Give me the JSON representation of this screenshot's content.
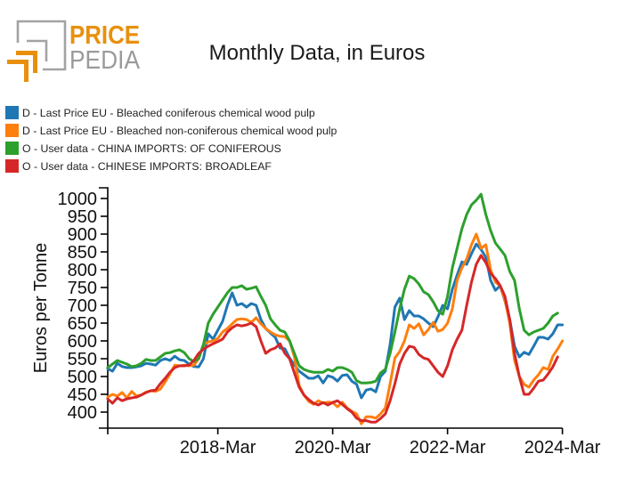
{
  "logo": {
    "line1": "PRICE",
    "line2": "PEDIA",
    "accent_color": "#e8900c",
    "gray_color": "#a3a3a3"
  },
  "chart_data": {
    "type": "line",
    "title": "Monthly Data, in Euros",
    "xlabel": "",
    "ylabel": "Euros per Tonne",
    "legend_position": "top-left",
    "grid": false,
    "ylim": [
      355,
      1030
    ],
    "xlim": [
      "2016-Apr",
      "2024-Mar"
    ],
    "yticks": [
      400,
      450,
      500,
      550,
      600,
      650,
      700,
      750,
      800,
      850,
      900,
      950,
      1000
    ],
    "xticks": [
      "2018-Mar",
      "2020-Mar",
      "2022-Mar",
      "2024-Mar"
    ],
    "x": [
      "2016-Apr",
      "2016-May",
      "2016-Jun",
      "2016-Jul",
      "2016-Aug",
      "2016-Sep",
      "2016-Oct",
      "2016-Nov",
      "2016-Dec",
      "2017-Jan",
      "2017-Feb",
      "2017-Mar",
      "2017-Apr",
      "2017-May",
      "2017-Jun",
      "2017-Jul",
      "2017-Aug",
      "2017-Sep",
      "2017-Oct",
      "2017-Nov",
      "2017-Dec",
      "2018-Jan",
      "2018-Feb",
      "2018-Mar",
      "2018-Apr",
      "2018-May",
      "2018-Jun",
      "2018-Jul",
      "2018-Aug",
      "2018-Sep",
      "2018-Oct",
      "2018-Nov",
      "2018-Dec",
      "2019-Jan",
      "2019-Feb",
      "2019-Mar",
      "2019-Apr",
      "2019-May",
      "2019-Jun",
      "2019-Jul",
      "2019-Aug",
      "2019-Sep",
      "2019-Oct",
      "2019-Nov",
      "2019-Dec",
      "2020-Jan",
      "2020-Feb",
      "2020-Mar",
      "2020-Apr",
      "2020-May",
      "2020-Jun",
      "2020-Jul",
      "2020-Aug",
      "2020-Sep",
      "2020-Oct",
      "2020-Nov",
      "2020-Dec",
      "2021-Jan",
      "2021-Feb",
      "2021-Mar",
      "2021-Apr",
      "2021-May",
      "2021-Jun",
      "2021-Jul",
      "2021-Aug",
      "2021-Sep",
      "2021-Oct",
      "2021-Nov",
      "2021-Dec",
      "2022-Jan",
      "2022-Feb",
      "2022-Mar",
      "2022-Apr",
      "2022-May",
      "2022-Jun",
      "2022-Jul",
      "2022-Aug",
      "2022-Sep",
      "2022-Oct",
      "2022-Nov",
      "2022-Dec",
      "2023-Jan",
      "2023-Feb",
      "2023-Mar",
      "2023-Apr",
      "2023-May",
      "2023-Jun",
      "2023-Jul",
      "2023-Aug",
      "2023-Sep",
      "2023-Oct",
      "2023-Nov",
      "2023-Dec",
      "2024-Jan",
      "2024-Feb",
      "2024-Mar"
    ],
    "series": [
      {
        "name": "D - Last Price EU - Bleached coniferous chemical wood pulp",
        "color": "#1f77b4",
        "values": [
          522,
          515,
          537,
          528,
          525,
          525,
          527,
          530,
          537,
          535,
          532,
          545,
          550,
          545,
          557,
          547,
          545,
          535,
          528,
          527,
          550,
          620,
          605,
          630,
          655,
          700,
          735,
          700,
          705,
          695,
          705,
          700,
          660,
          635,
          622,
          610,
          580,
          578,
          552,
          532,
          515,
          505,
          495,
          495,
          502,
          482,
          502,
          498,
          487,
          503,
          505,
          487,
          478,
          440,
          462,
          465,
          457,
          500,
          515,
          590,
          695,
          720,
          660,
          685,
          670,
          670,
          662,
          650,
          640,
          668,
          700,
          690,
          745,
          785,
          822,
          815,
          845,
          872,
          857,
          835,
          770,
          742,
          755,
          712,
          660,
          585,
          555,
          568,
          562,
          585,
          610,
          610,
          605,
          620,
          645,
          645
        ]
      },
      {
        "name": "D - Last Price EU - Bleached non-coniferous chemical wood pulp",
        "color": "#ff7f0e",
        "values": [
          442,
          450,
          445,
          455,
          440,
          458,
          445,
          448,
          456,
          460,
          458,
          465,
          485,
          507,
          532,
          530,
          532,
          530,
          532,
          550,
          590,
          597,
          600,
          607,
          625,
          635,
          648,
          660,
          662,
          660,
          652,
          665,
          648,
          635,
          625,
          617,
          613,
          612,
          600,
          555,
          475,
          448,
          430,
          422,
          432,
          425,
          428,
          427,
          415,
          428,
          412,
          402,
          395,
          367,
          387,
          387,
          383,
          395,
          412,
          480,
          552,
          570,
          600,
          645,
          635,
          648,
          617,
          632,
          652,
          627,
          632,
          650,
          690,
          770,
          805,
          830,
          870,
          900,
          860,
          870,
          800,
          765,
          755,
          715,
          650,
          545,
          500,
          478,
          470,
          490,
          505,
          525,
          520,
          557,
          577,
          600
        ]
      },
      {
        "name": "O - User data - CHINA IMPORTS: OF CONIFEROUS",
        "color": "#2ca02c",
        "values": [
          525,
          535,
          545,
          540,
          535,
          528,
          530,
          537,
          548,
          545,
          545,
          555,
          565,
          567,
          572,
          575,
          567,
          550,
          542,
          550,
          590,
          650,
          675,
          695,
          715,
          735,
          750,
          750,
          755,
          745,
          748,
          752,
          725,
          700,
          662,
          645,
          630,
          625,
          600,
          565,
          530,
          520,
          515,
          512,
          512,
          512,
          520,
          515,
          525,
          525,
          520,
          512,
          488,
          482,
          482,
          483,
          487,
          510,
          520,
          565,
          625,
          690,
          745,
          782,
          775,
          760,
          738,
          730,
          710,
          685,
          675,
          725,
          805,
          860,
          915,
          955,
          982,
          995,
          1012,
          955,
          910,
          875,
          858,
          840,
          795,
          770,
          690,
          630,
          617,
          625,
          630,
          635,
          650,
          670,
          678,
          null
        ]
      },
      {
        "name": "O - User data - CHINESE IMPORTS: BROADLEAF",
        "color": "#d62728",
        "values": [
          437,
          425,
          440,
          432,
          437,
          440,
          442,
          448,
          455,
          460,
          462,
          480,
          495,
          512,
          525,
          530,
          530,
          532,
          545,
          565,
          577,
          585,
          592,
          598,
          605,
          625,
          637,
          645,
          642,
          645,
          650,
          640,
          600,
          565,
          575,
          580,
          592,
          565,
          550,
          510,
          470,
          448,
          435,
          425,
          420,
          427,
          420,
          427,
          432,
          422,
          410,
          400,
          383,
          376,
          376,
          372,
          372,
          382,
          395,
          432,
          480,
          535,
          565,
          585,
          582,
          562,
          552,
          548,
          530,
          512,
          500,
          530,
          575,
          605,
          630,
          700,
          765,
          815,
          840,
          820,
          790,
          775,
          755,
          725,
          660,
          565,
          500,
          450,
          450,
          467,
          487,
          490,
          507,
          527,
          555,
          null
        ]
      }
    ]
  }
}
